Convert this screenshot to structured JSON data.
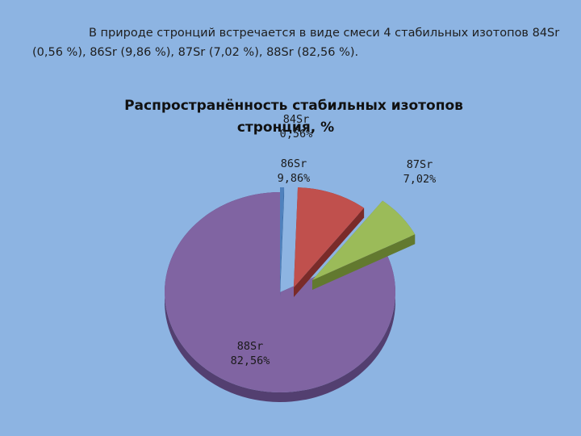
{
  "slide": {
    "intro_text": "В природе стронций встречается в виде смеси 4 стабильных изотопов 84Sr (0,56 %), 86Sr (9,86 %), 87Sr (7,02 %), 88Sr (82,56 %)."
  },
  "chart_data": {
    "type": "pie",
    "title": "Распространённость стабильных изотопов стронция, %",
    "title_lines": [
      "Распространённость стабильных изотопов",
      "стронция, %"
    ],
    "exploded": true,
    "three_d": true,
    "categories": [
      "84Sr",
      "86Sr",
      "87Sr",
      "88Sr"
    ],
    "values": [
      0.56,
      9.86,
      7.02,
      82.56
    ],
    "value_labels": [
      "0,56%",
      "9,86%",
      "7,02%",
      "82,56%"
    ],
    "colors": [
      "#4f81bd",
      "#c0504d",
      "#9bbb59",
      "#8064a2"
    ],
    "side_colors": [
      "#2f5f96",
      "#7a2b29",
      "#62792f",
      "#533f70"
    ],
    "legend": "none"
  }
}
